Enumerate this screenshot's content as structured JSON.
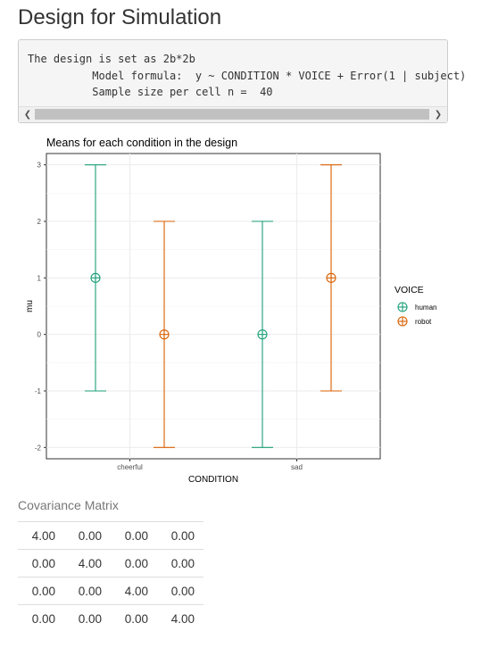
{
  "page": {
    "title": "Design for Simulation"
  },
  "code_output": {
    "lines": [
      "The design is set as 2b*2b",
      "          Model formula:  y ~ CONDITION * VOICE + Error(1 | subject)",
      "          Sample size per cell n =  40"
    ]
  },
  "chart_data": {
    "type": "errorbar",
    "title": "Means for each condition in the design",
    "xlabel": "CONDITION",
    "ylabel": "mu",
    "categories": [
      "cheerful",
      "sad"
    ],
    "ylim": [
      -2.2,
      3.2
    ],
    "yticks": [
      -2,
      -1,
      0,
      1,
      2,
      3
    ],
    "grid": true,
    "legend": {
      "title": "VOICE",
      "position": "right"
    },
    "series": [
      {
        "name": "human",
        "color": "#1b9e77",
        "mean": [
          1,
          0
        ],
        "lower": [
          -1,
          -2
        ],
        "upper": [
          3,
          2
        ]
      },
      {
        "name": "robot",
        "color": "#d95f02",
        "mean": [
          0,
          1
        ],
        "lower": [
          -2,
          -1
        ],
        "upper": [
          2,
          3
        ]
      }
    ]
  },
  "covariance": {
    "title": "Covariance Matrix",
    "rows": [
      [
        "4.00",
        "0.00",
        "0.00",
        "0.00"
      ],
      [
        "0.00",
        "4.00",
        "0.00",
        "0.00"
      ],
      [
        "0.00",
        "0.00",
        "4.00",
        "0.00"
      ],
      [
        "0.00",
        "0.00",
        "0.00",
        "4.00"
      ]
    ]
  }
}
